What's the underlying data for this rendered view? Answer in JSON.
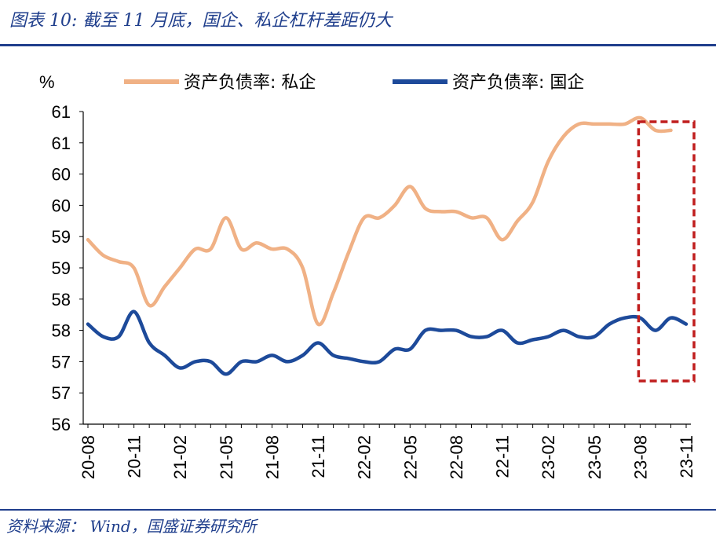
{
  "header": {
    "title": "图表 10:  截至 11 月底，国企、私企杠杆差距仍大"
  },
  "footer": {
    "source": "资料来源：  Wind，国盛证券研究所"
  },
  "colors": {
    "accent": "#1f3e8c",
    "private": "#f0b185",
    "state": "#1d4a9a",
    "highlight_box": "#c01e1e"
  },
  "chart_data": {
    "type": "line",
    "ylabel": "%",
    "ylim": [
      56,
      61
    ],
    "y_ticks": [
      "56",
      "57",
      "57",
      "58",
      "58",
      "59",
      "59",
      "60",
      "60",
      "61",
      "61"
    ],
    "x_ticks": [
      "20-08",
      "20-11",
      "21-02",
      "21-05",
      "21-08",
      "21-11",
      "22-02",
      "22-05",
      "22-08",
      "22-11",
      "23-02",
      "23-05",
      "23-08",
      "23-11"
    ],
    "x": [
      "20-08",
      "20-09",
      "20-10",
      "20-11",
      "20-12",
      "21-01",
      "21-02",
      "21-03",
      "21-04",
      "21-05",
      "21-06",
      "21-07",
      "21-08",
      "21-09",
      "21-10",
      "21-11",
      "21-12",
      "22-01",
      "22-02",
      "22-03",
      "22-04",
      "22-05",
      "22-06",
      "22-07",
      "22-08",
      "22-09",
      "22-10",
      "22-11",
      "22-12",
      "23-01",
      "23-02",
      "23-03",
      "23-04",
      "23-05",
      "23-06",
      "23-07",
      "23-08",
      "23-09",
      "23-10",
      "23-11"
    ],
    "series": [
      {
        "name": "资产负债率: 私企",
        "values": [
          58.95,
          58.7,
          58.6,
          58.5,
          57.9,
          58.2,
          58.5,
          58.8,
          58.8,
          59.3,
          58.8,
          58.9,
          58.8,
          58.8,
          58.5,
          57.6,
          58.1,
          58.75,
          59.3,
          59.3,
          59.5,
          59.8,
          59.45,
          59.4,
          59.4,
          59.3,
          59.3,
          58.95,
          59.25,
          59.55,
          60.2,
          60.6,
          60.8,
          60.8,
          60.8,
          60.8,
          60.9,
          60.7,
          60.7,
          null
        ]
      },
      {
        "name": "资产负债率: 国企",
        "values": [
          57.6,
          57.4,
          57.4,
          57.8,
          57.3,
          57.1,
          56.9,
          57.0,
          57.0,
          56.8,
          57.0,
          57.0,
          57.1,
          57.0,
          57.1,
          57.3,
          57.1,
          57.05,
          57.0,
          57.0,
          57.2,
          57.2,
          57.5,
          57.5,
          57.5,
          57.4,
          57.4,
          57.5,
          57.3,
          57.35,
          57.4,
          57.5,
          57.4,
          57.4,
          57.6,
          57.7,
          57.7,
          57.5,
          57.7,
          57.6
        ]
      }
    ],
    "annotations": [
      {
        "type": "dashed-box",
        "from": "23-08",
        "to": "23-11"
      }
    ],
    "legend": "top",
    "grid": false
  }
}
